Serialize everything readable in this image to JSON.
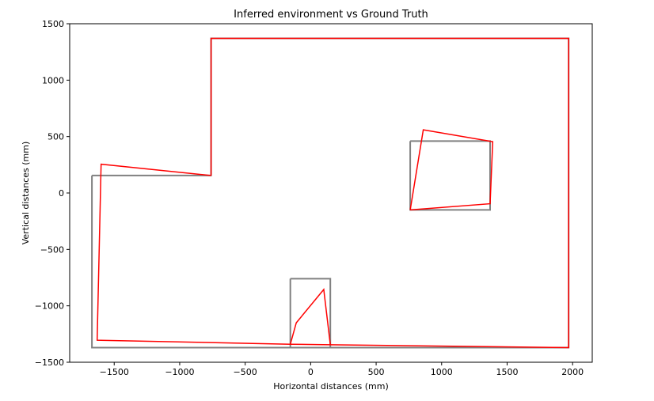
{
  "chart_data": {
    "type": "line",
    "title": "Inferred environment vs Ground Truth",
    "xlabel": "Horizontal distances (mm)",
    "ylabel": "Vertical distances (mm)",
    "xlim": [
      -1840,
      2150
    ],
    "ylim": [
      -1500,
      1500
    ],
    "xticks": [
      -1500,
      -1000,
      -500,
      0,
      500,
      1000,
      1500,
      2000
    ],
    "yticks": [
      -1500,
      -1000,
      -500,
      0,
      500,
      1000,
      1500
    ],
    "xtick_labels": [
      "−1500",
      "−1000",
      "−500",
      "0",
      "500",
      "1000",
      "1500",
      "2000"
    ],
    "ytick_labels": [
      "−1500",
      "−1000",
      "−500",
      "0",
      "500",
      "1000",
      "1500"
    ],
    "grid": false,
    "series": [
      {
        "role": "ground-truth",
        "color": "#808080",
        "segments": [
          {
            "x": [
              -1670,
              -760,
              -760,
              1970,
              1970,
              -1670,
              -1670
            ],
            "y": [
              155,
              155,
              1370,
              1370,
              -1370,
              -1370,
              155
            ]
          },
          {
            "x": [
              760,
              1370,
              1370,
              760,
              760
            ],
            "y": [
              460,
              460,
              -150,
              -150,
              460
            ]
          },
          {
            "x": [
              -155,
              150,
              150,
              -155,
              -155
            ],
            "y": [
              -760,
              -760,
              -1370,
              -1370,
              -760
            ]
          }
        ]
      },
      {
        "role": "inferred",
        "color": "#ff0000",
        "segments": [
          {
            "x": [
              -760,
              -760,
              1970,
              1970,
              150,
              -155,
              -1630,
              -1600,
              -760
            ],
            "y": [
              155,
              1370,
              1370,
              -1370,
              -1345,
              -1340,
              -1305,
              255,
              155
            ]
          },
          {
            "x": [
              760,
              860,
              1390,
              1370,
              760
            ],
            "y": [
              -150,
              560,
              455,
              -95,
              -150
            ]
          },
          {
            "x": [
              -155,
              -110,
              100,
              150
            ],
            "y": [
              -1340,
              -1150,
              -855,
              -1345
            ]
          }
        ]
      }
    ]
  }
}
